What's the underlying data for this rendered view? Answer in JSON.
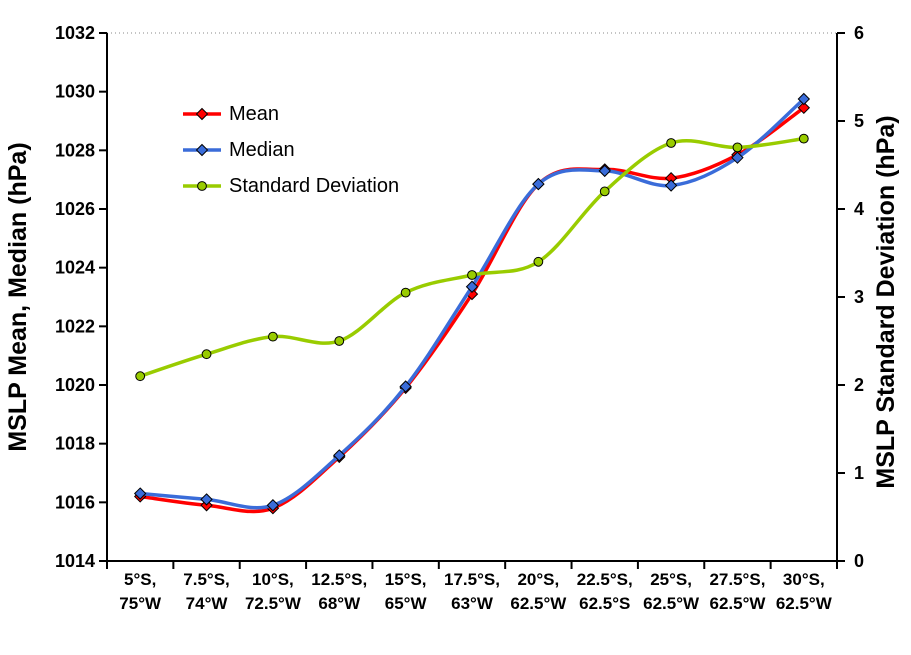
{
  "chart_data": {
    "type": "line",
    "smoothed": true,
    "categories": [
      "5°S, 75°W",
      "7.5°S, 74°W",
      "10°S, 72.5°W",
      "12.5°S, 68°W",
      "15°S, 65°W",
      "17.5°S, 63°W",
      "20°S, 62.5°W",
      "22.5°S, 62.5°S",
      "25°S, 62.5°W",
      "27.5°S, 62.5°W",
      "30°S, 62.5°W"
    ],
    "x_tick_lines": [
      [
        "5°S,",
        "75°W"
      ],
      [
        "7.5°S,",
        "74°W"
      ],
      [
        "10°S,",
        "72.5°W"
      ],
      [
        "12.5°S,",
        "68°W"
      ],
      [
        "15°S,",
        "65°W"
      ],
      [
        "17.5°S,",
        "63°W"
      ],
      [
        "20°S,",
        "62.5°W"
      ],
      [
        "22.5°S,",
        "62.5°S"
      ],
      [
        "25°S,",
        "62.5°W"
      ],
      [
        "27.5°S,",
        "62.5°W"
      ],
      [
        "30°S,",
        "62.5°W"
      ]
    ],
    "series": [
      {
        "name": "Mean",
        "axis": "left",
        "color": "#FF0000",
        "marker": "diamond",
        "values": [
          1016.2,
          1015.9,
          1015.8,
          1017.55,
          1019.9,
          1023.1,
          1026.85,
          1027.35,
          1027.05,
          1027.85,
          1029.45
        ]
      },
      {
        "name": "Median",
        "axis": "left",
        "color": "#3A6CD9",
        "marker": "diamond",
        "values": [
          1016.3,
          1016.1,
          1015.9,
          1017.6,
          1019.95,
          1023.35,
          1026.85,
          1027.3,
          1026.8,
          1027.75,
          1029.75
        ]
      },
      {
        "name": "Standard Deviation",
        "axis": "right",
        "color": "#99CC00",
        "marker": "circle",
        "values": [
          2.1,
          2.35,
          2.55,
          2.5,
          3.05,
          3.25,
          3.4,
          4.2,
          4.75,
          4.7,
          4.8
        ]
      }
    ],
    "left_axis": {
      "title": "MSLP Mean, Median (hPa)",
      "min": 1014,
      "max": 1032,
      "step": 2,
      "tick_labels": [
        "1014",
        "1016",
        "1018",
        "1020",
        "1022",
        "1024",
        "1026",
        "1028",
        "1030",
        "1032"
      ]
    },
    "right_axis": {
      "title": "MSLP Standard Deviation (hPa)",
      "min": 0,
      "max": 6,
      "step": 1,
      "tick_labels": [
        "0",
        "1",
        "2",
        "3",
        "4",
        "5",
        "6"
      ]
    },
    "legend": {
      "position": "inside-top-left",
      "items": [
        "Mean",
        "Median",
        "Standard Deviation"
      ]
    },
    "grid": "dotted top border only",
    "colors": {
      "mean": "#FF0000",
      "median": "#3A6CD9",
      "stddev": "#99CC00",
      "axis": "#000000",
      "grid_dotted": "#888888",
      "background": "#FFFFFF"
    }
  }
}
